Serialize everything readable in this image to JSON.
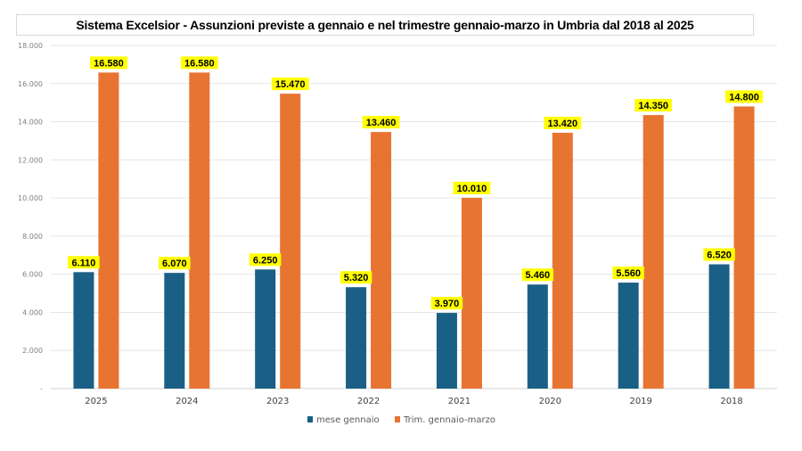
{
  "chart_data": {
    "type": "bar",
    "title": "Sistema Excelsior - Assunzioni previste a gennaio e nel trimestre gennaio-marzo in Umbria dal 2018 al 2025",
    "xlabel": "",
    "ylabel": "",
    "categories": [
      "2025",
      "2024",
      "2023",
      "2022",
      "2021",
      "2020",
      "2019",
      "2018"
    ],
    "series": [
      {
        "name": "mese gennaio",
        "color": "#1a5f85",
        "values": [
          6110,
          6070,
          6250,
          5320,
          3970,
          5460,
          5560,
          6520
        ],
        "labels": [
          "6.110",
          "6.070",
          "6.250",
          "5.320",
          "3.970",
          "5.460",
          "5.560",
          "6.520"
        ]
      },
      {
        "name": "Trim. gennaio-marzo",
        "color": "#e87432",
        "values": [
          16580,
          16580,
          15470,
          13460,
          10010,
          13420,
          14350,
          14800
        ],
        "labels": [
          "16.580",
          "16.580",
          "15.470",
          "13.460",
          "10.010",
          "13.420",
          "14.350",
          "14.800"
        ]
      }
    ],
    "ylim": [
      0,
      18000
    ],
    "yticks": [
      0,
      2000,
      4000,
      6000,
      8000,
      10000,
      12000,
      14000,
      16000,
      18000
    ],
    "ytick_labels": [
      "-",
      "2.000",
      "4.000",
      "6.000",
      "8.000",
      "10.000",
      "12.000",
      "14.000",
      "16.000",
      "18.000"
    ],
    "grid": true,
    "legend_position": "bottom",
    "data_label_background": "#ffff00"
  }
}
